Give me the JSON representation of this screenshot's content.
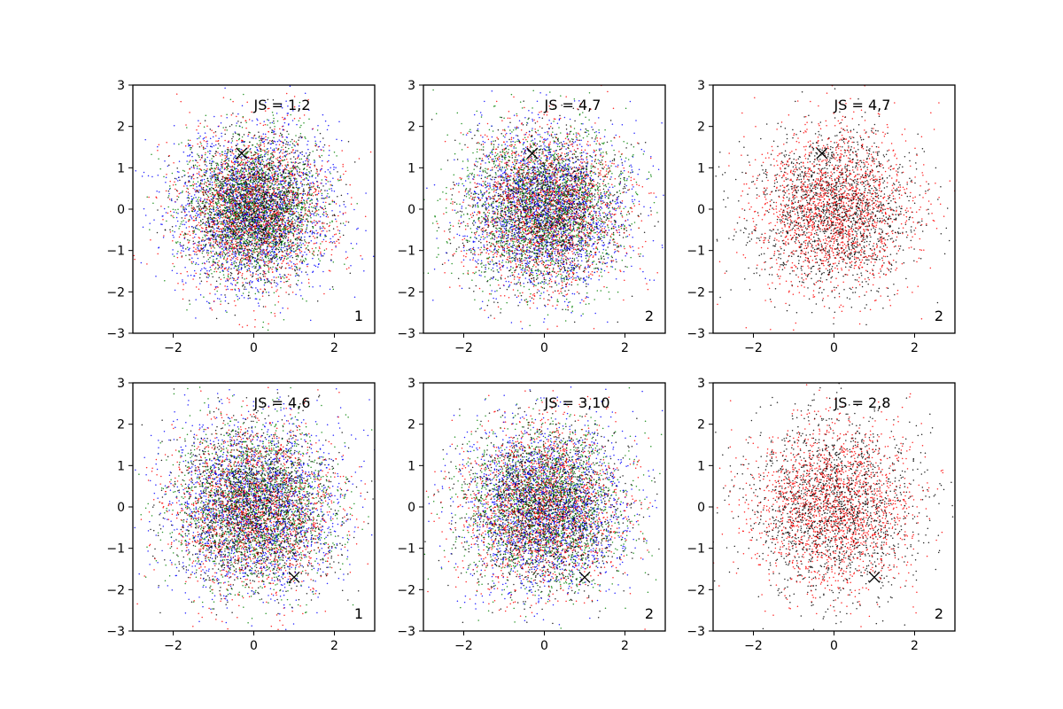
{
  "chart_data": [
    {
      "type": "scatter",
      "title": "",
      "xlabel": "",
      "ylabel": "",
      "xlim": [
        -3,
        3
      ],
      "ylim": [
        -3,
        3
      ],
      "x_ticks": [
        -2,
        0,
        2
      ],
      "y_ticks": [
        -3,
        -2,
        -1,
        0,
        1,
        2,
        3
      ],
      "x_tick_labels": [
        "−2",
        "0",
        "2"
      ],
      "y_tick_labels": [
        "−3",
        "−2",
        "−1",
        "0",
        "1",
        "2",
        "3"
      ],
      "annotation": "JS = 1,2",
      "corner_label": "1",
      "series": [
        {
          "color": "#0000ff",
          "distribution": "standard-normal-2d",
          "spread": 1.0
        },
        {
          "color": "#008000",
          "distribution": "standard-normal-2d",
          "spread": 0.85
        },
        {
          "color": "#ff0000",
          "distribution": "standard-normal-2d",
          "spread": 0.95
        },
        {
          "color": "#000000",
          "distribution": "standard-normal-2d",
          "spread": 0.8
        }
      ],
      "marker": {
        "shape": "x",
        "color": "#000000",
        "x": -0.3,
        "y": 1.35
      },
      "grid": false
    },
    {
      "type": "scatter",
      "title": "",
      "xlabel": "",
      "ylabel": "",
      "xlim": [
        -3,
        3
      ],
      "ylim": [
        -3,
        3
      ],
      "x_ticks": [
        -2,
        0,
        2
      ],
      "y_ticks": [
        -3,
        -2,
        -1,
        0,
        1,
        2,
        3
      ],
      "x_tick_labels": [
        "−2",
        "0",
        "2"
      ],
      "y_tick_labels": [
        "−3",
        "−2",
        "−1",
        "0",
        "1",
        "2",
        "3"
      ],
      "annotation": "JS = 4,7",
      "corner_label": "2",
      "series": [
        {
          "color": "#0000ff",
          "distribution": "standard-normal-2d",
          "spread": 1.0
        },
        {
          "color": "#008000",
          "distribution": "standard-normal-2d",
          "spread": 1.0
        },
        {
          "color": "#ff0000",
          "distribution": "standard-normal-2d",
          "spread": 1.0
        },
        {
          "color": "#000000",
          "distribution": "standard-normal-2d",
          "spread": 0.9
        }
      ],
      "marker": {
        "shape": "x",
        "color": "#000000",
        "x": -0.3,
        "y": 1.35
      },
      "grid": false
    },
    {
      "type": "scatter",
      "title": "",
      "xlabel": "",
      "ylabel": "",
      "xlim": [
        -3,
        3
      ],
      "ylim": [
        -3,
        3
      ],
      "x_ticks": [
        -2,
        0,
        2
      ],
      "y_ticks": [
        -3,
        -2,
        -1,
        0,
        1,
        2,
        3
      ],
      "x_tick_labels": [
        "−2",
        "0",
        "2"
      ],
      "y_tick_labels": [
        "−3",
        "−2",
        "−1",
        "0",
        "1",
        "2",
        "3"
      ],
      "annotation": "JS = 4,7",
      "corner_label": "2",
      "series": [
        {
          "color": "#000000",
          "distribution": "standard-normal-2d",
          "spread": 1.0
        },
        {
          "color": "#ff0000",
          "distribution": "standard-normal-2d",
          "spread": 1.0
        }
      ],
      "marker": {
        "shape": "x",
        "color": "#000000",
        "x": -0.3,
        "y": 1.35
      },
      "grid": false
    },
    {
      "type": "scatter",
      "title": "",
      "xlabel": "",
      "ylabel": "",
      "xlim": [
        -3,
        3
      ],
      "ylim": [
        -3,
        3
      ],
      "x_ticks": [
        -2,
        0,
        2
      ],
      "y_ticks": [
        -3,
        -2,
        -1,
        0,
        1,
        2,
        3
      ],
      "x_tick_labels": [
        "−2",
        "0",
        "2"
      ],
      "y_tick_labels": [
        "−3",
        "−2",
        "−1",
        "0",
        "1",
        "2",
        "3"
      ],
      "annotation": "JS = 4,6",
      "corner_label": "1",
      "series": [
        {
          "color": "#0000ff",
          "distribution": "standard-normal-2d",
          "spread": 1.1
        },
        {
          "color": "#008000",
          "distribution": "standard-normal-2d",
          "spread": 1.0
        },
        {
          "color": "#ff0000",
          "distribution": "standard-normal-2d",
          "spread": 1.0
        },
        {
          "color": "#000000",
          "distribution": "standard-normal-2d",
          "spread": 0.95
        }
      ],
      "marker": {
        "shape": "x",
        "color": "#000000",
        "x": 1.0,
        "y": -1.7
      },
      "grid": false
    },
    {
      "type": "scatter",
      "title": "",
      "xlabel": "",
      "ylabel": "",
      "xlim": [
        -3,
        3
      ],
      "ylim": [
        -3,
        3
      ],
      "x_ticks": [
        -2,
        0,
        2
      ],
      "y_ticks": [
        -3,
        -2,
        -1,
        0,
        1,
        2,
        3
      ],
      "x_tick_labels": [
        "−2",
        "0",
        "2"
      ],
      "y_tick_labels": [
        "−3",
        "−2",
        "−1",
        "0",
        "1",
        "2",
        "3"
      ],
      "annotation": "JS = 3,10",
      "corner_label": "2",
      "series": [
        {
          "color": "#0000ff",
          "distribution": "standard-normal-2d",
          "spread": 1.05
        },
        {
          "color": "#008000",
          "distribution": "standard-normal-2d",
          "spread": 1.0
        },
        {
          "color": "#ff0000",
          "distribution": "standard-normal-2d",
          "spread": 1.0
        },
        {
          "color": "#000000",
          "distribution": "standard-normal-2d",
          "spread": 0.95
        }
      ],
      "marker": {
        "shape": "x",
        "color": "#000000",
        "x": 1.0,
        "y": -1.7
      },
      "grid": false
    },
    {
      "type": "scatter",
      "title": "",
      "xlabel": "",
      "ylabel": "",
      "xlim": [
        -3,
        3
      ],
      "ylim": [
        -3,
        3
      ],
      "x_ticks": [
        -2,
        0,
        2
      ],
      "y_ticks": [
        -3,
        -2,
        -1,
        0,
        1,
        2,
        3
      ],
      "x_tick_labels": [
        "−2",
        "0",
        "2"
      ],
      "y_tick_labels": [
        "−3",
        "−2",
        "−1",
        "0",
        "1",
        "2",
        "3"
      ],
      "annotation": "JS = 2,8",
      "corner_label": "2",
      "series": [
        {
          "color": "#000000",
          "distribution": "standard-normal-2d",
          "spread": 1.05
        },
        {
          "color": "#ff0000",
          "distribution": "standard-normal-2d",
          "spread": 1.0
        }
      ],
      "marker": {
        "shape": "x",
        "color": "#000000",
        "x": 1.0,
        "y": -1.7
      },
      "grid": false
    }
  ]
}
